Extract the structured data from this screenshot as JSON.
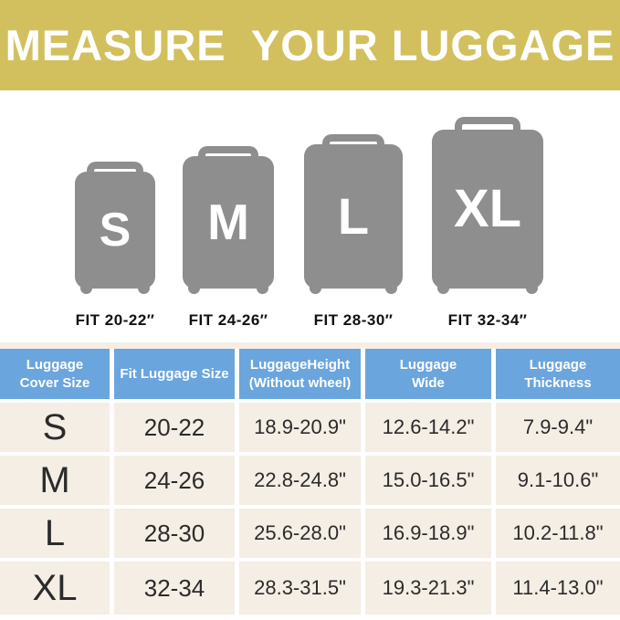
{
  "banner": {
    "title": "MEASURE  YOUR LUGGAGE"
  },
  "sizes": [
    {
      "letter": "S",
      "fit_label": "FIT 20-22″"
    },
    {
      "letter": "M",
      "fit_label": "FIT 24-26″"
    },
    {
      "letter": "L",
      "fit_label": "FIT 28-30″"
    },
    {
      "letter": "XL",
      "fit_label": "FIT 32-34″"
    }
  ],
  "table": {
    "headers": [
      "Luggage\nCover Size",
      "Fit Luggage Size",
      "LuggageHeight\n(Without wheel)",
      "Luggage\nWide",
      "Luggage\nThickness"
    ],
    "rows": [
      [
        "S",
        "20-22",
        "18.9-20.9\"",
        "12.6-14.2\"",
        "7.9-9.4\""
      ],
      [
        "M",
        "24-26",
        "22.8-24.8\"",
        "15.0-16.5\"",
        "9.1-10.6\""
      ],
      [
        "L",
        "28-30",
        "25.6-28.0\"",
        "16.9-18.9\"",
        "10.2-11.8\""
      ],
      [
        "XL",
        "32-34",
        "28.3-31.5\"",
        "19.3-21.3\"",
        "11.4-13.0\""
      ]
    ]
  },
  "chart_data": {
    "type": "table",
    "title": "MEASURE  YOUR LUGGAGE",
    "columns": [
      "Luggage Cover Size",
      "Fit Luggage Size",
      "LuggageHeight (Without wheel)",
      "Luggage Wide",
      "Luggage Thickness"
    ],
    "rows": [
      [
        "S",
        "20-22",
        "18.9-20.9\"",
        "12.6-14.2\"",
        "7.9-9.4\""
      ],
      [
        "M",
        "24-26",
        "22.8-24.8\"",
        "15.0-16.5\"",
        "9.1-10.6\""
      ],
      [
        "L",
        "28-30",
        "25.6-28.0\"",
        "16.9-18.9\"",
        "10.2-11.8\""
      ],
      [
        "XL",
        "32-34",
        "28.3-31.5\"",
        "19.3-21.3\"",
        "11.4-13.0\""
      ]
    ]
  },
  "colors": {
    "banner_bg": "#D2C05E",
    "header_cell_bg": "#6BA5DE",
    "row_cell_bg": "#F5EEE5",
    "suitcase_gray": "#8E8E8E",
    "banner_text": "#FFFFFF",
    "table_text": "#2B2B2B"
  }
}
